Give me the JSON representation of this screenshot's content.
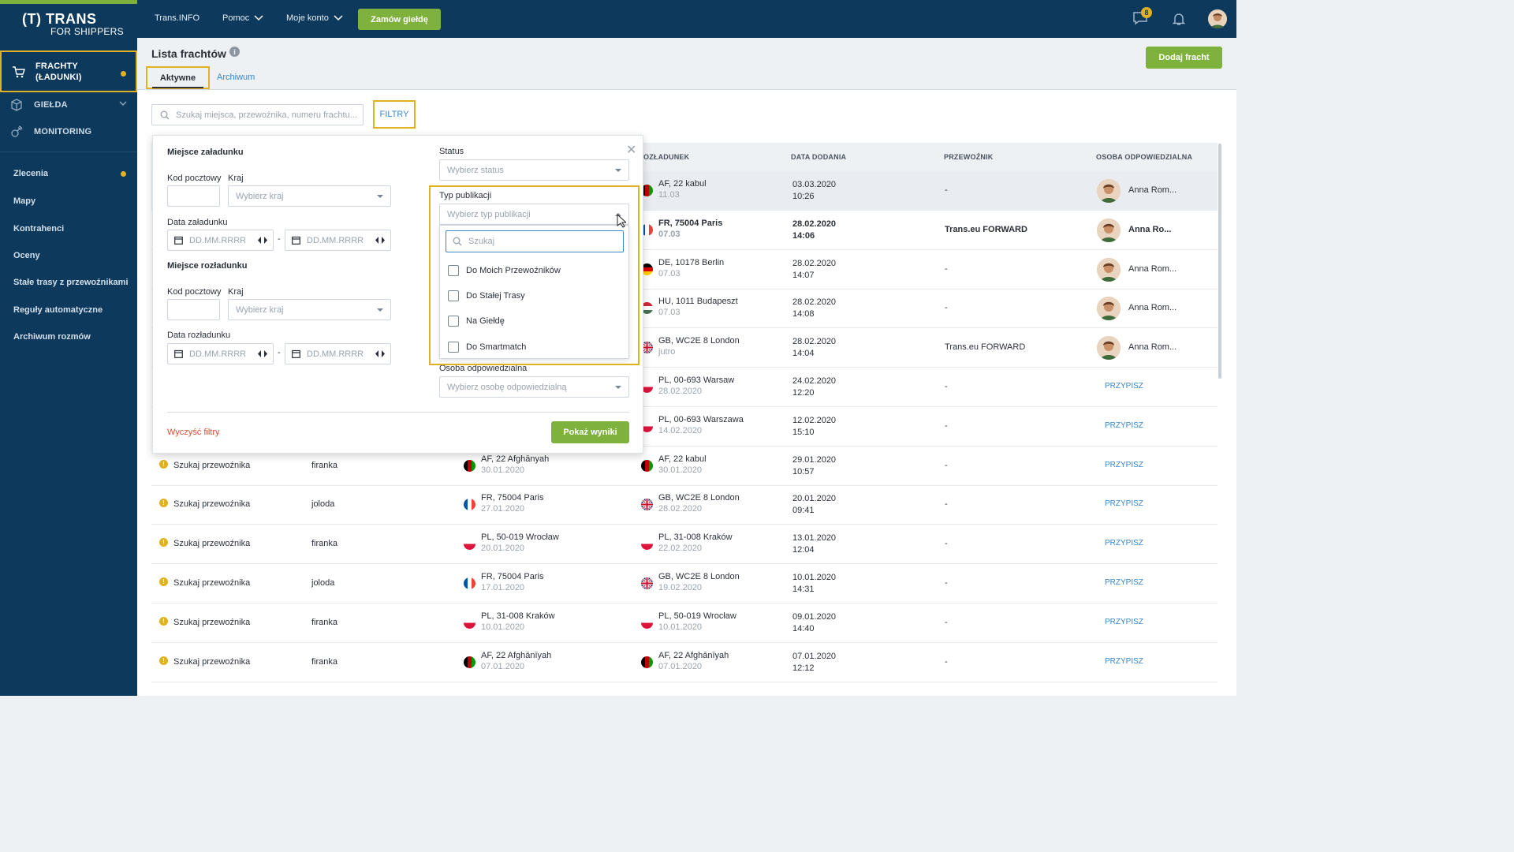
{
  "brand": {
    "logo_line1": "(T) TRANS",
    "logo_line2": "FOR SHIPPERS"
  },
  "sidebar": {
    "main_items": [
      {
        "label": "FRACHTY (ŁADUNKI)"
      },
      {
        "label": "GIEŁDA"
      },
      {
        "label": "MONITORING"
      }
    ],
    "sub_items": [
      {
        "label": "Zlecenia"
      },
      {
        "label": "Mapy"
      },
      {
        "label": "Kontrahenci"
      },
      {
        "label": "Oceny"
      },
      {
        "label": "Stałe trasy z przewoźnikami"
      },
      {
        "label": "Reguły automatyczne"
      },
      {
        "label": "Archiwum rozmów"
      }
    ]
  },
  "topbar": {
    "links": [
      "Trans.INFO",
      "Pomoc",
      "Moje konto"
    ],
    "order_button": "Zamów giełdę",
    "message_count": "8"
  },
  "header": {
    "title": "Lista frachtów",
    "tabs": [
      "Aktywne",
      "Archiwum"
    ],
    "add_button": "Dodaj fracht"
  },
  "toolbar": {
    "search_placeholder": "Szukaj miejsca, przewoźnika, numeru frachtu...",
    "filters_button": "FILTRY"
  },
  "table": {
    "columns": [
      "OZŁADUNEK",
      "DATA DODANIA",
      "PRZEWOŹNIK",
      "OSOBA ODPOWIEDZIALNA"
    ],
    "assign_label": "PRZYPISZ",
    "rows": [
      {
        "status": "",
        "type": "",
        "load_place": "",
        "load_date": "",
        "unload_place": "AF, 22 kabul",
        "unload_date": "11.03",
        "added_date": "03.03.2020",
        "added_time": "10:26",
        "carrier": "-",
        "person": "Anna Rom...",
        "bold": false,
        "highlight": true
      },
      {
        "status": "",
        "type": "",
        "load_place": "",
        "load_date": "",
        "unload_place": "FR, 75004 Paris",
        "unload_date": "07.03",
        "added_date": "28.02.2020",
        "added_time": "14:06",
        "carrier": "Trans.eu FORWARD",
        "person": "Anna Ro...",
        "bold": true,
        "highlight": false
      },
      {
        "status": "",
        "type": "",
        "load_place": "",
        "load_date": "",
        "unload_place": "DE, 10178 Berlin",
        "unload_date": "07.03",
        "added_date": "28.02.2020",
        "added_time": "14:07",
        "carrier": "-",
        "person": "Anna Rom...",
        "bold": false,
        "highlight": false
      },
      {
        "status": "",
        "type": "",
        "load_place": "",
        "load_date": "",
        "unload_place": "HU, 1011 Budapeszt",
        "unload_date": "07.03",
        "added_date": "28.02.2020",
        "added_time": "14:08",
        "carrier": "-",
        "person": "Anna Rom...",
        "bold": false,
        "highlight": false
      },
      {
        "status": "",
        "type": "",
        "load_place": "",
        "load_date": "",
        "unload_place": "GB, WC2E 8 London",
        "unload_date": "jutro",
        "added_date": "28.02.2020",
        "added_time": "14:04",
        "carrier": "Trans.eu FORWARD",
        "person": "Anna Rom...",
        "bold": false,
        "highlight": false
      },
      {
        "status": "",
        "type": "",
        "load_place": "",
        "load_date": "",
        "unload_place": "PL, 00-693 Warsaw",
        "unload_date": "28.02.2020",
        "added_date": "24.02.2020",
        "added_time": "12:20",
        "carrier": "-",
        "person": "",
        "bold": false,
        "highlight": false
      },
      {
        "status": "",
        "type": "",
        "load_place": "",
        "load_date": "",
        "unload_place": "PL, 00-693 Warszawa",
        "unload_date": "14.02.2020",
        "added_date": "12.02.2020",
        "added_time": "15:10",
        "carrier": "-",
        "person": "",
        "bold": false,
        "highlight": false
      },
      {
        "status": "Szukaj przewoźnika",
        "type": "firanka",
        "load_place": "AF, 22 Afghānyah",
        "load_date": "30.01.2020",
        "unload_place": "AF, 22 kabul",
        "unload_date": "30.01.2020",
        "added_date": "29.01.2020",
        "added_time": "10:57",
        "carrier": "-",
        "person": "",
        "bold": false,
        "highlight": false
      },
      {
        "status": "Szukaj przewoźnika",
        "type": "joloda",
        "load_place": "FR, 75004 Paris",
        "load_date": "27.01.2020",
        "unload_place": "GB, WC2E 8 London",
        "unload_date": "28.02.2020",
        "added_date": "20.01.2020",
        "added_time": "09:41",
        "carrier": "-",
        "person": "",
        "bold": false,
        "highlight": false
      },
      {
        "status": "Szukaj przewoźnika",
        "type": "firanka",
        "load_place": "PL, 50-019 Wrocław",
        "load_date": "20.01.2020",
        "unload_place": "PL, 31-008 Kraków",
        "unload_date": "22.02.2020",
        "added_date": "13.01.2020",
        "added_time": "12:04",
        "carrier": "-",
        "person": "",
        "bold": false,
        "highlight": false
      },
      {
        "status": "Szukaj przewoźnika",
        "type": "joloda",
        "load_place": "FR, 75004 Paris",
        "load_date": "17.01.2020",
        "unload_place": "GB, WC2E 8 London",
        "unload_date": "19.02.2020",
        "added_date": "10.01.2020",
        "added_time": "14:31",
        "carrier": "-",
        "person": "",
        "bold": false,
        "highlight": false
      },
      {
        "status": "Szukaj przewoźnika",
        "type": "firanka",
        "load_place": "PL, 31-008 Kraków",
        "load_date": "10.01.2020",
        "unload_place": "PL, 50-019 Wrocław",
        "unload_date": "10.01.2020",
        "added_date": "09.01.2020",
        "added_time": "14:40",
        "carrier": "-",
        "person": "",
        "bold": false,
        "highlight": false
      },
      {
        "status": "Szukaj przewoźnika",
        "type": "firanka",
        "load_place": "AF, 22 Afghānīyah",
        "load_date": "07.01.2020",
        "unload_place": "AF, 22 Afghānīyah",
        "unload_date": "07.01.2020",
        "added_date": "07.01.2020",
        "added_time": "12:12",
        "carrier": "-",
        "person": "",
        "bold": false,
        "highlight": false
      }
    ]
  },
  "filters": {
    "loading_section": "Miejsce załadunku",
    "unloading_section": "Miejsce rozładunku",
    "postal_code_label": "Kod pocztowy",
    "country_label": "Kraj",
    "country_placeholder": "Wybierz kraj",
    "loading_date_label": "Data załadunku",
    "unloading_date_label": "Data rozładunku",
    "date_placeholder": "DD.MM.RRRR",
    "date_separator": "-",
    "status_label": "Status",
    "status_placeholder": "Wybierz status",
    "pub_type_label": "Typ publikacji",
    "pub_type_placeholder": "Wybierz typ publikacji",
    "pub_search_placeholder": "Szukaj",
    "pub_options": [
      "Do Moich Przewoźników",
      "Do Stałej Trasy",
      "Na Giełdę",
      "Do Smartmatch"
    ],
    "person_label": "Osoba odpowiedzialna",
    "person_placeholder": "Wybierz osobę odpowiedzialną",
    "clear_label": "Wyczyść filtry",
    "show_results": "Pokaż wyniki"
  },
  "colors": {
    "navy": "#0d3a5c",
    "green": "#7fb23d",
    "highlight": "#e0b221",
    "link": "#3a86c8",
    "danger": "#e24b3b"
  }
}
